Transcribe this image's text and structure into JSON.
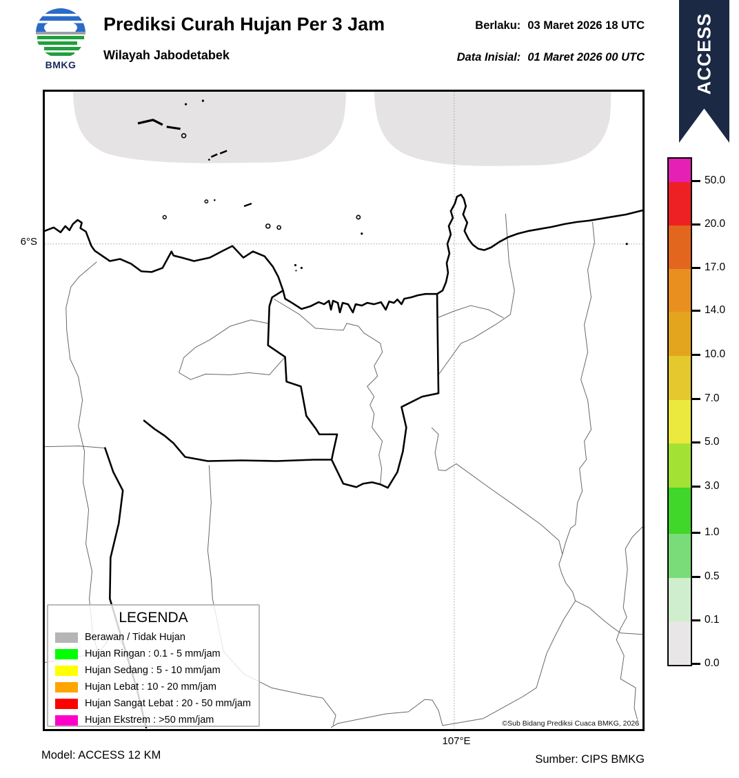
{
  "header": {
    "logo_text": "BMKG",
    "title": "Prediksi Curah Hujan Per 3 Jam",
    "subtitle": "Wilayah Jabodetabek",
    "valid_label": "Berlaku:",
    "valid_value": "03 Maret 2026 18 UTC",
    "init_label": "Data Inisial:",
    "init_value": "01 Maret 2026 00 UTC",
    "ribbon_text": "ACCESS",
    "ribbon_color": "#1b2944"
  },
  "map": {
    "lat_label": "6°S",
    "lon_label": "107°E",
    "copyright": "©Sub Bidang Prediksi Cuaca BMKG, 2026",
    "cloud_region_color": "#e5e3e4"
  },
  "colorbar": {
    "ticks_top_to_bottom": [
      "50.0",
      "20.0",
      "17.0",
      "14.0",
      "10.0",
      "7.0",
      "5.0",
      "3.0",
      "1.0",
      "0.5",
      "0.1",
      "0.0"
    ],
    "segment_colors_top_to_bottom": [
      "#e520b4",
      "#ed2124",
      "#e2661e",
      "#e98f20",
      "#e3a51e",
      "#e5c72e",
      "#ebe93e",
      "#a4e135",
      "#40d62a",
      "#79dc79",
      "#cfeecd",
      "#e8e6e7"
    ]
  },
  "legend": {
    "title": "LEGENDA",
    "items": [
      {
        "color": "#b5b5b5",
        "label": "Berawan / Tidak Hujan"
      },
      {
        "color": "#00ff00",
        "label": "Hujan Ringan : 0.1 - 5 mm/jam"
      },
      {
        "color": "#ffff00",
        "label": "Hujan Sedang : 5 - 10 mm/jam"
      },
      {
        "color": "#ffa500",
        "label": "Hujan Lebat : 10 - 20 mm/jam"
      },
      {
        "color": "#ff0000",
        "label": "Hujan Sangat Lebat : 20 - 50 mm/jam"
      },
      {
        "color": "#ff00c8",
        "label": "Hujan Ekstrem : >50 mm/jam"
      }
    ]
  },
  "footer": {
    "model": "Model: ACCESS 12 KM",
    "source": "Sumber: CIPS BMKG"
  }
}
